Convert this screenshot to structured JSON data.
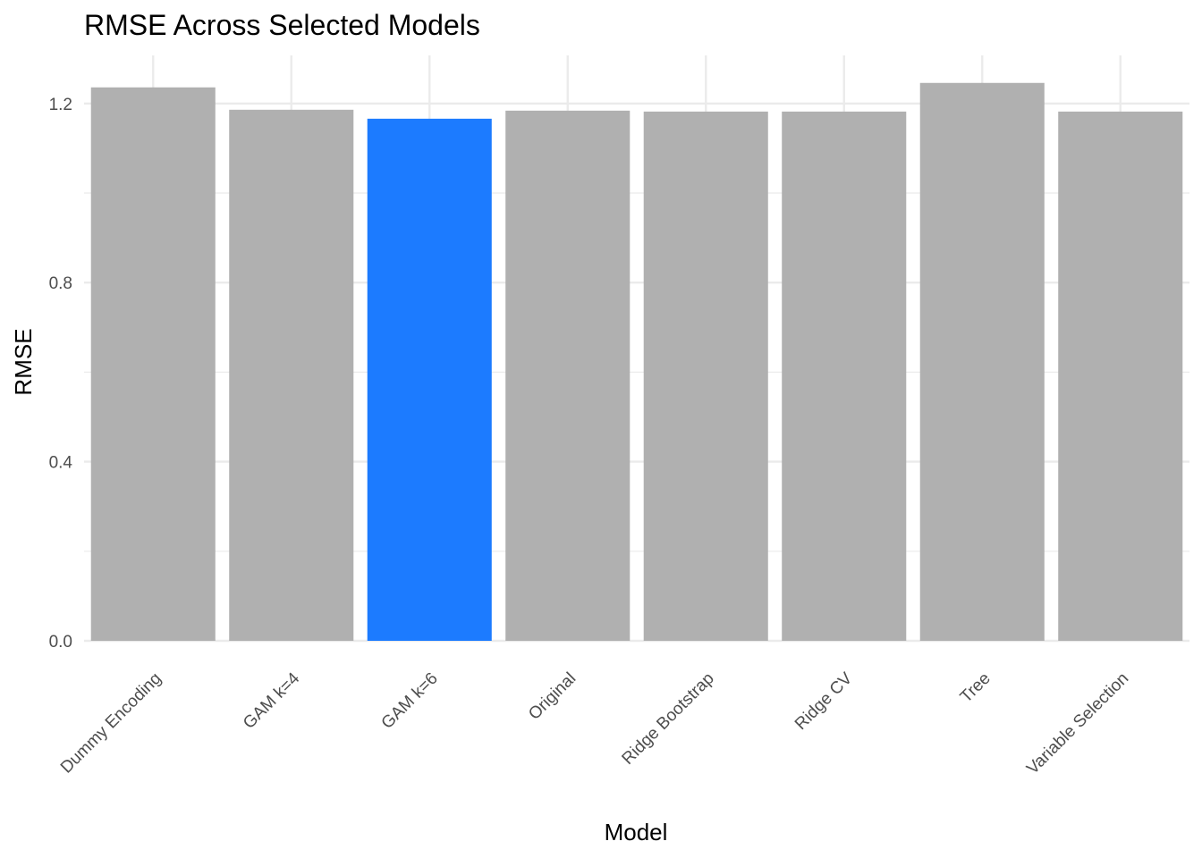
{
  "chart_data": {
    "type": "bar",
    "title": "RMSE Across Selected Models",
    "xlabel": "Model",
    "ylabel": "RMSE",
    "ylim": [
      0,
      1.3
    ],
    "yticks": [
      0.0,
      0.4,
      0.8,
      1.2
    ],
    "ytick_labels": [
      "0.0",
      "0.4",
      "0.8",
      "1.2"
    ],
    "grid": true,
    "legend": "none",
    "categories": [
      "Dummy Encoding",
      "GAM k=4",
      "GAM k=6",
      "Original",
      "Ridge Bootstrap",
      "Ridge CV",
      "Tree",
      "Variable Selection"
    ],
    "values": [
      1.236,
      1.186,
      1.166,
      1.184,
      1.182,
      1.182,
      1.246,
      1.182
    ],
    "highlight_index": 2,
    "colors": {
      "bar": "#b0b0b0",
      "highlight": "#1c7bff",
      "grid": "#ebebeb"
    }
  }
}
